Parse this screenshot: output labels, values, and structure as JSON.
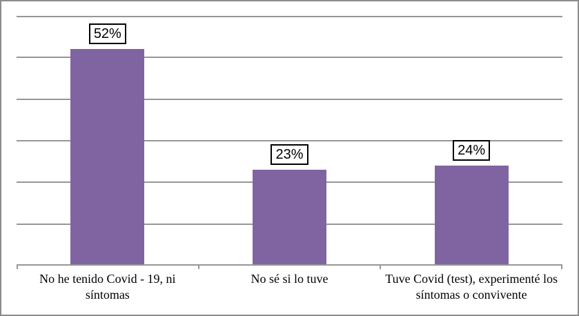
{
  "chart_data": {
    "type": "bar",
    "title": "",
    "xlabel": "",
    "ylabel": "",
    "categories": [
      "No he tenido Covid - 19, ni síntomas",
      "No sé si lo tuve",
      "Tuve Covid (test), experimenté los síntomas o convivente"
    ],
    "values": [
      52,
      23,
      24
    ],
    "data_labels": [
      "52%",
      "23%",
      "24%"
    ],
    "ylim": [
      0,
      60
    ],
    "gridline_step": 10,
    "grid": true,
    "legend": "none",
    "y_axis_labels_visible": false,
    "colors": {
      "bar": "#8064A2",
      "gridline": "#969696",
      "axis": "#969696",
      "frame_border": "#8C8C8C",
      "label_box_border": "#000000",
      "label_box_fill": "#FFFFFF",
      "text": "#000000",
      "background": "#FFFFFF"
    }
  }
}
